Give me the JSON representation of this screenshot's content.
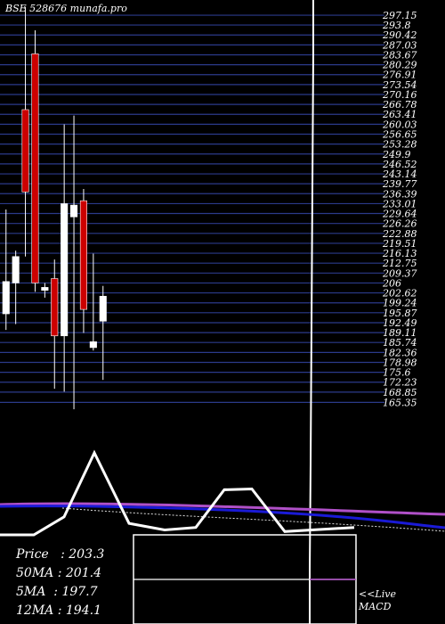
{
  "header": {
    "code": "BSE 528676",
    "site": "munafa.pro"
  },
  "colors": {
    "background": "#000000",
    "gridline": "#2b3a8a",
    "bull": "#ffffff",
    "bear": "#cc0000",
    "ma_long": "#1a1ad6",
    "ma_short": "#b050c8",
    "text": "#ffffff"
  },
  "chart_data": [
    {
      "type": "candlestick",
      "ylim": [
        163.35,
        300.5
      ],
      "y_ticks": [
        "297.15",
        "293.8",
        "290.42",
        "287.03",
        "283.67",
        "280.29",
        "276.91",
        "273.54",
        "270.16",
        "266.78",
        "263.41",
        "260.03",
        "256.65",
        "253.28",
        "249.9",
        "246.52",
        "243.14",
        "239.77",
        "236.39",
        "233.01",
        "229.64",
        "226.26",
        "222.88",
        "219.51",
        "216.13",
        "212.75",
        "209.37",
        "206",
        "202.62",
        "199.24",
        "195.87",
        "192.49",
        "189.11",
        "185.74",
        "182.36",
        "178.98",
        "175.6",
        "172.23",
        "168.85",
        "165.35"
      ],
      "y_tick_values": [
        297.15,
        293.8,
        290.42,
        287.03,
        283.67,
        280.29,
        276.91,
        273.54,
        270.16,
        266.78,
        263.41,
        260.03,
        256.65,
        253.28,
        249.9,
        246.52,
        243.14,
        239.77,
        236.39,
        233.01,
        229.64,
        226.26,
        222.88,
        219.51,
        216.13,
        212.75,
        209.37,
        206,
        202.62,
        199.24,
        195.87,
        192.49,
        189.11,
        185.74,
        182.36,
        178.98,
        175.6,
        172.23,
        168.85,
        165.35
      ],
      "candles": [
        {
          "open": 195.5,
          "close": 206.5,
          "high": 231,
          "low": 190
        },
        {
          "open": 206,
          "close": 215,
          "high": 217,
          "low": 192
        },
        {
          "open": 265,
          "close": 237,
          "high": 300,
          "low": 215
        },
        {
          "open": 284,
          "close": 206,
          "high": 292,
          "low": 203
        },
        {
          "open": 203.5,
          "close": 204.5,
          "high": 206,
          "low": 201
        },
        {
          "open": 207.5,
          "close": 188,
          "high": 214,
          "low": 170
        },
        {
          "open": 188,
          "close": 233,
          "high": 260,
          "low": 169
        },
        {
          "open": 228.5,
          "close": 232.5,
          "high": 263,
          "low": 163
        },
        {
          "open": 234,
          "close": 197,
          "high": 238,
          "low": 189
        },
        {
          "open": 184,
          "close": 186,
          "high": 216,
          "low": 183
        },
        {
          "open": 193,
          "close": 201.5,
          "high": 205,
          "low": 173
        }
      ]
    },
    {
      "type": "line",
      "name": "moving averages",
      "series": [
        {
          "name": "50MA",
          "values": [
            201.4
          ]
        },
        {
          "name": "12MA",
          "values": [
            194.1
          ]
        }
      ]
    },
    {
      "type": "line",
      "name": "volume-style profile",
      "values": [
        0,
        0,
        0.22,
        1,
        0.14,
        0.06,
        0.09,
        0.55,
        0.56,
        0.04,
        0.09
      ]
    }
  ],
  "stats": [
    {
      "label": "Price",
      "value": "203.3"
    },
    {
      "label": "50MA",
      "value": "201.4"
    },
    {
      "label": "5MA",
      "value": "197.7"
    },
    {
      "label": "12MA",
      "value": "194.1"
    }
  ],
  "footer": {
    "live": "<<Live",
    "macd": "MACD"
  }
}
